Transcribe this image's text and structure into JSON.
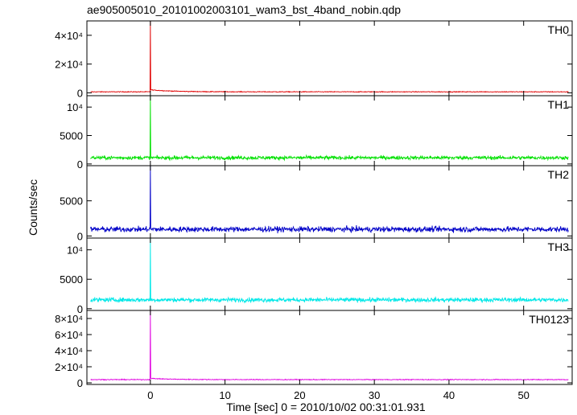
{
  "chart_data": {
    "type": "line",
    "title": "ae905005010_20101002003101_wam3_bst_4band_nobin.qdp",
    "xlabel": "Time [sec] 0 = 2010/10/02 00:31:01.931",
    "ylabel": "Counts/sec",
    "xlim": [
      -8.5,
      56.5
    ],
    "x_ticks": [
      0,
      10,
      20,
      30,
      40,
      50
    ],
    "x_tick_labels": [
      "0",
      "10",
      "20",
      "30",
      "40",
      "50"
    ],
    "x_start": -8,
    "x_end": 56,
    "peak_time": 0,
    "grid": false,
    "legend": "none",
    "panels": [
      {
        "name": "TH0",
        "color": "#e00000",
        "ylim": [
          -2000,
          50000
        ],
        "y_ticks": [
          0,
          20000,
          40000
        ],
        "y_tick_labels": [
          "0",
          "2×10⁴",
          "4×10⁴"
        ],
        "baseline": 700,
        "noise": 250,
        "peak": 50000,
        "post_peak_level": 1400,
        "post_peak_decay_s": 3
      },
      {
        "name": "TH1",
        "color": "#00e000",
        "ylim": [
          -300,
          12000
        ],
        "y_ticks": [
          0,
          5000,
          10000
        ],
        "y_tick_labels": [
          "0",
          "5000",
          "10⁴"
        ],
        "baseline": 1100,
        "noise": 320,
        "peak": 12000,
        "post_peak_level": 0,
        "post_peak_decay_s": 1
      },
      {
        "name": "TH2",
        "color": "#0000c8",
        "ylim": [
          -300,
          10000
        ],
        "y_ticks": [
          0,
          5000
        ],
        "y_tick_labels": [
          "0",
          "5000"
        ],
        "baseline": 950,
        "noise": 380,
        "peak": 10000,
        "post_peak_level": 0,
        "post_peak_decay_s": 1
      },
      {
        "name": "TH3",
        "color": "#00e8e8",
        "ylim": [
          -300,
          12000
        ],
        "y_ticks": [
          0,
          5000,
          10000
        ],
        "y_tick_labels": [
          "0",
          "5000",
          "10⁴"
        ],
        "baseline": 1500,
        "noise": 360,
        "peak": 12000,
        "post_peak_level": 0,
        "post_peak_decay_s": 1
      },
      {
        "name": "TH0123",
        "color": "#e000e0",
        "ylim": [
          -2000,
          90000
        ],
        "y_ticks": [
          0,
          20000,
          40000,
          60000,
          80000
        ],
        "y_tick_labels": [
          "0",
          "2×10⁴",
          "4×10⁴",
          "6×10⁴",
          "8×10⁴"
        ],
        "baseline": 4000,
        "noise": 500,
        "peak": 90000,
        "post_peak_level": 1500,
        "post_peak_decay_s": 3
      }
    ]
  }
}
